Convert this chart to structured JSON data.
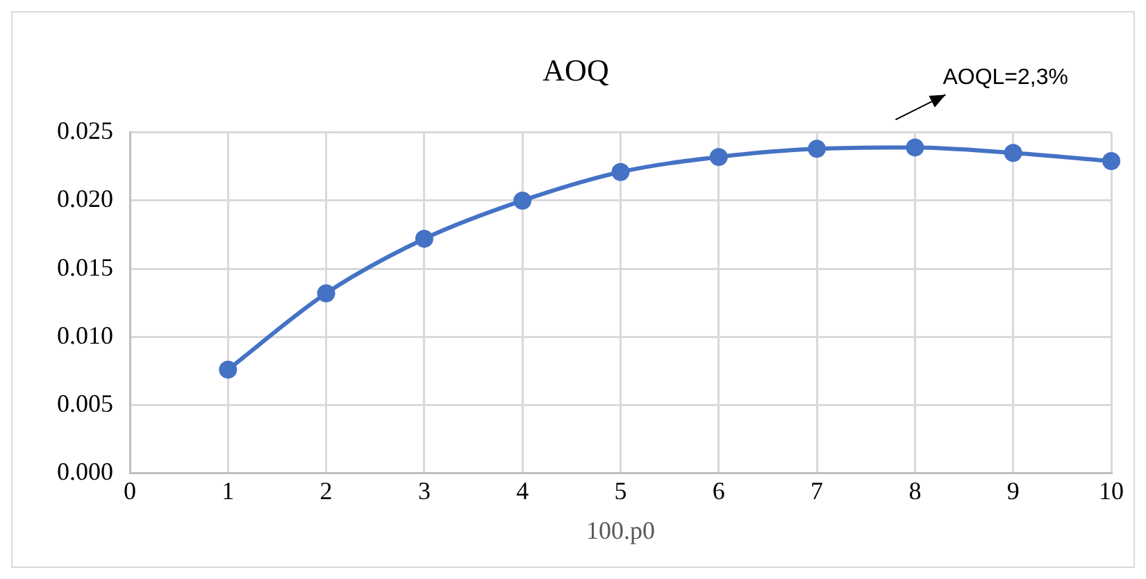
{
  "chart_data": {
    "type": "line",
    "title": "AOQ",
    "xlabel": "100.p0",
    "x": [
      1,
      2,
      3,
      4,
      5,
      6,
      7,
      8,
      9,
      10
    ],
    "series": [
      {
        "color": "#4472c4",
        "values": [
          0.0076,
          0.0132,
          0.0172,
          0.02,
          0.0221,
          0.0232,
          0.0238,
          0.0239,
          0.0235,
          0.0229
        ]
      }
    ],
    "xlim": [
      0,
      10
    ],
    "xticks": [
      0,
      1,
      2,
      3,
      4,
      5,
      6,
      7,
      8,
      9,
      10
    ],
    "ylim": [
      0,
      0.025
    ],
    "yticks": [
      {
        "value": 0,
        "label": "0.000"
      },
      {
        "value": 0.005,
        "label": "0.005"
      },
      {
        "value": 0.01,
        "label": "0.010"
      },
      {
        "value": 0.015,
        "label": "0.015"
      },
      {
        "value": 0.02,
        "label": "0.020"
      },
      {
        "value": 0.025,
        "label": "0.025"
      }
    ],
    "grid": true,
    "legend": false,
    "marker": "circle",
    "line_style": "solid",
    "annotations": [
      {
        "text": "AOQL=2,3%",
        "x": 8,
        "y": 0.0239
      }
    ]
  }
}
